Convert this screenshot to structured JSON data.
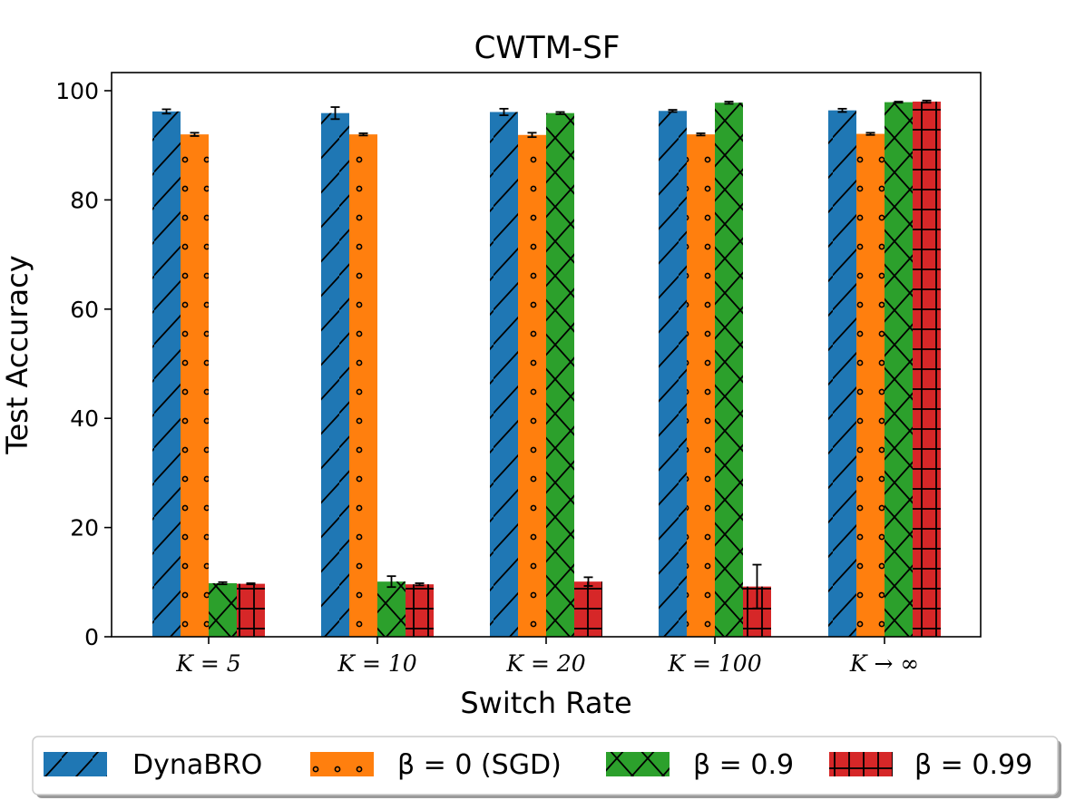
{
  "chart_data": {
    "type": "bar",
    "title": "CWTM-SF",
    "xlabel": "Switch Rate",
    "ylabel": "Test Accuracy",
    "ylim": [
      0,
      100
    ],
    "yticks": [
      "0",
      "20",
      "40",
      "60",
      "80",
      "100"
    ],
    "categories": [
      "K = 5",
      "K = 10",
      "K = 20",
      "K = 100",
      "K → ∞"
    ],
    "series": [
      {
        "name": "DynaBRO",
        "color": "#1f77b4",
        "hatch": "slash",
        "values": [
          96.2,
          95.9,
          96.1,
          96.3,
          96.4
        ],
        "errors": [
          0.4,
          1.1,
          0.6,
          0.2,
          0.3
        ]
      },
      {
        "name": "β = 0 (SGD)",
        "color": "#ff7f0e",
        "hatch": "dots",
        "values": [
          92.0,
          92.0,
          91.9,
          92.0,
          92.1
        ],
        "errors": [
          0.3,
          0.2,
          0.4,
          0.2,
          0.2
        ]
      },
      {
        "name": "β = 0.9",
        "color": "#2ca02c",
        "hatch": "cross",
        "values": [
          9.8,
          10.1,
          95.9,
          97.8,
          97.9
        ],
        "errors": [
          0.2,
          1.0,
          0.2,
          0.2,
          0.1
        ]
      },
      {
        "name": "β = 0.99",
        "color": "#d62728",
        "hatch": "grid",
        "values": [
          9.7,
          9.6,
          10.1,
          9.2,
          98.0
        ],
        "errors": [
          0.1,
          0.2,
          0.8,
          4.0,
          0.2
        ]
      }
    ],
    "legend_position": "bottom-outside",
    "grid": false
  }
}
